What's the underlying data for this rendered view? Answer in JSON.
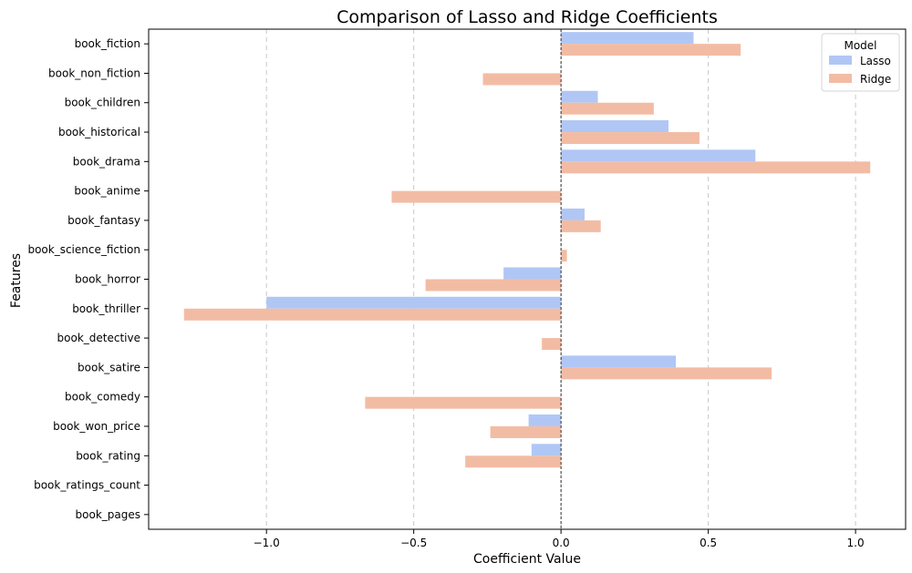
{
  "chart_data": {
    "type": "bar",
    "orientation": "horizontal",
    "title": "Comparison of Lasso and Ridge Coefficients",
    "xlabel": "Coefficient Value",
    "ylabel": "Features",
    "xlim": [
      -1.4,
      1.17
    ],
    "xticks": [
      -1.0,
      -0.5,
      0.0,
      0.5,
      1.0
    ],
    "xtick_labels": [
      "−1.0",
      "−0.5",
      "0.0",
      "0.5",
      "1.0"
    ],
    "grid": "x, dashed",
    "categories": [
      "book_fiction",
      "book_non_fiction",
      "book_children",
      "book_historical",
      "book_drama",
      "book_anime",
      "book_fantasy",
      "book_science_fiction",
      "book_horror",
      "book_thriller",
      "book_detective",
      "book_satire",
      "book_comedy",
      "book_won_price",
      "book_rating",
      "book_ratings_count",
      "book_pages"
    ],
    "series": [
      {
        "name": "Lasso",
        "color": "#b0c7f5",
        "values": [
          0.45,
          0.0,
          0.125,
          0.365,
          0.66,
          0.0,
          0.08,
          0.0,
          -0.195,
          -1.0,
          0.0,
          0.39,
          0.0,
          -0.11,
          -0.1,
          0.0,
          0.0
        ]
      },
      {
        "name": "Ridge",
        "color": "#f2bca4",
        "values": [
          0.61,
          -0.265,
          0.315,
          0.47,
          1.05,
          -0.575,
          0.135,
          0.02,
          -0.46,
          -1.28,
          -0.065,
          0.715,
          -0.665,
          -0.24,
          -0.325,
          0.0,
          0.0
        ]
      }
    ],
    "legend": {
      "title": "Model",
      "position": "top-right"
    }
  }
}
